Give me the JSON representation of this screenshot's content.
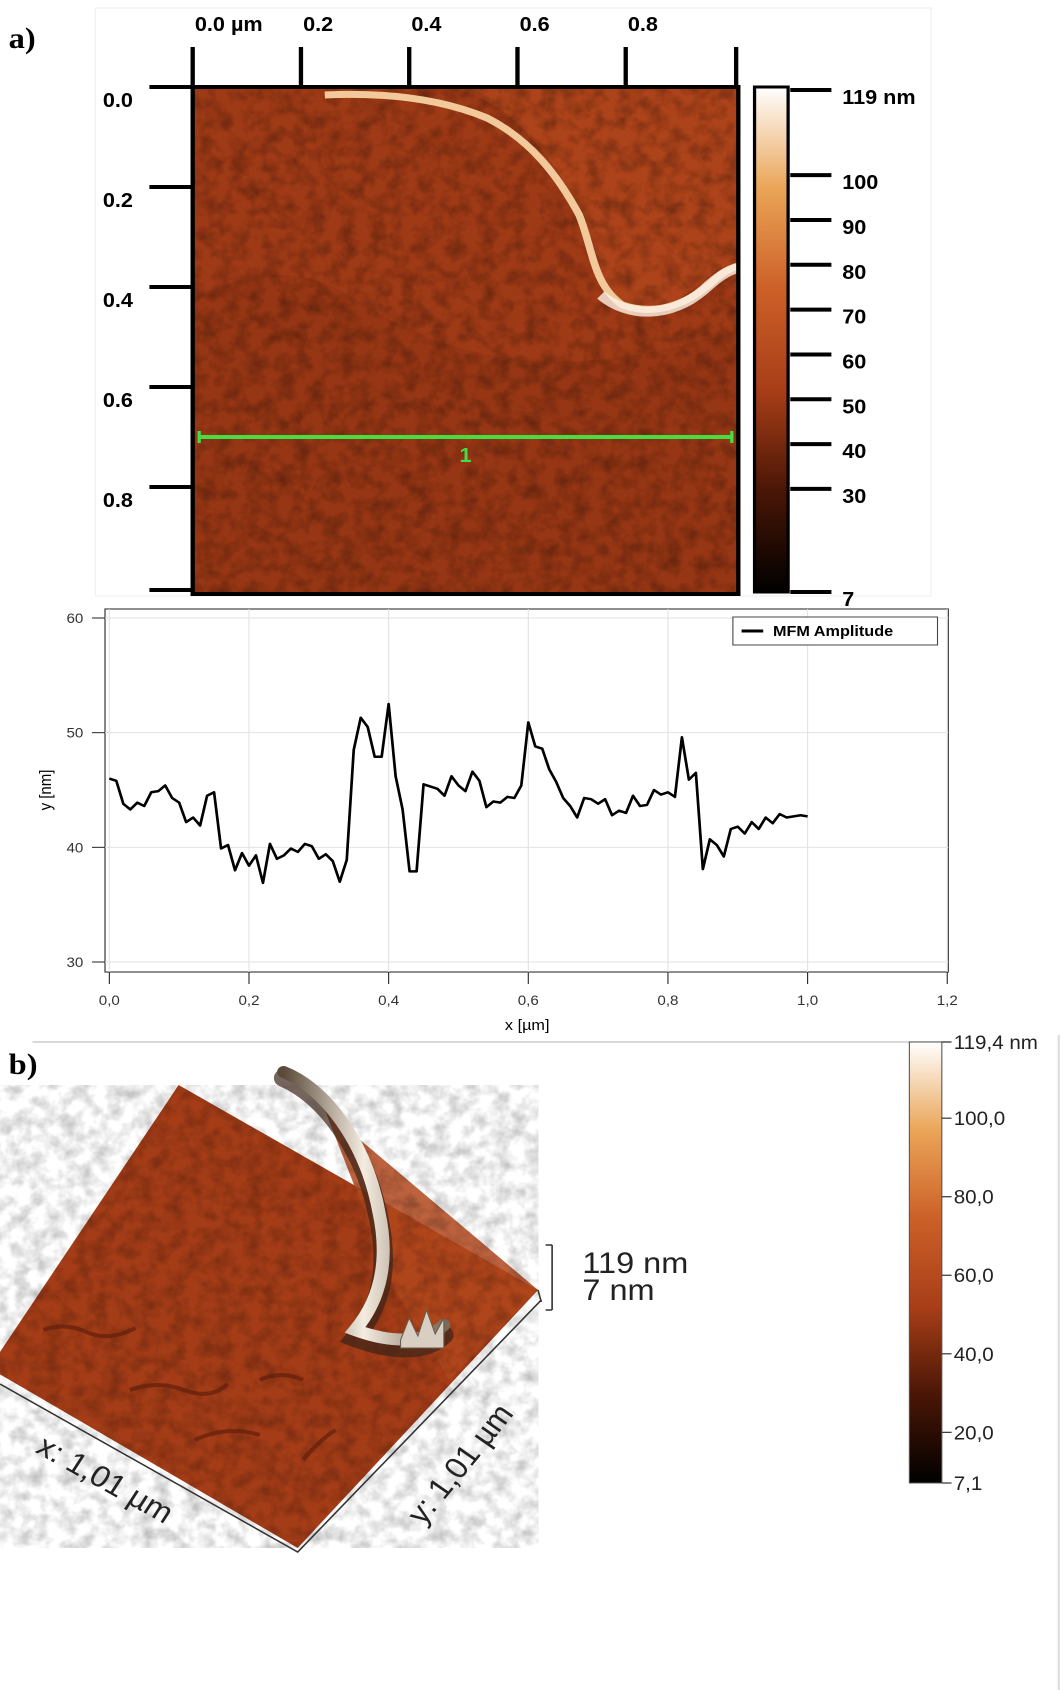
{
  "panel_labels": [
    "a)",
    "b)"
  ],
  "chart_data": [
    {
      "type": "image",
      "xlim": [
        0,
        1
      ],
      "ylim": [
        0,
        1
      ],
      "xticks": [
        {
          "value": 0,
          "label": "0.0 µm"
        },
        0.2,
        0.4,
        0.6,
        0.8
      ],
      "yticks": [
        {
          "value": 0,
          "label": "0.0"
        },
        0.2,
        0.4,
        0.6,
        0.8
      ],
      "profile": {
        "label": "1",
        "y": 0.7,
        "color": "#44dd44"
      },
      "colorbar": {
        "clim": [
          7,
          119
        ],
        "ticks": [
          {
            "value": 119,
            "label": "119 nm"
          },
          100,
          90,
          80,
          70,
          60,
          50,
          40,
          30,
          7
        ]
      },
      "colormap": [
        "#000000",
        "#4a1606",
        "#a83e18",
        "#cc6028",
        "#eaa558",
        "#ffffff"
      ]
    },
    {
      "type": "line",
      "xlabel": "x [µm]",
      "ylabel": "y [nm]",
      "x": [
        0,
        0.01,
        0.02,
        0.03,
        0.04,
        0.05,
        0.06,
        0.07,
        0.08,
        0.09,
        0.1,
        0.11,
        0.12,
        0.13,
        0.14,
        0.15,
        0.16,
        0.17,
        0.18,
        0.19,
        0.2,
        0.21,
        0.22,
        0.23,
        0.24,
        0.25,
        0.26,
        0.27,
        0.28,
        0.29,
        0.3,
        0.31,
        0.32,
        0.33,
        0.34,
        0.35,
        0.36,
        0.37,
        0.38,
        0.39,
        0.4,
        0.41,
        0.42,
        0.43,
        0.44,
        0.45,
        0.46,
        0.47,
        0.48,
        0.49,
        0.5,
        0.51,
        0.52,
        0.53,
        0.54,
        0.55,
        0.56,
        0.57,
        0.58,
        0.59,
        0.6,
        0.61,
        0.62,
        0.63,
        0.64,
        0.65,
        0.66,
        0.67,
        0.68,
        0.69,
        0.7,
        0.71,
        0.72,
        0.73,
        0.74,
        0.75,
        0.76,
        0.77,
        0.78,
        0.79,
        0.8,
        0.81,
        0.82,
        0.83,
        0.84,
        0.85,
        0.86,
        0.87,
        0.88,
        0.89,
        0.9,
        0.91,
        0.92,
        0.93,
        0.94,
        0.95,
        0.96,
        0.97,
        0.98,
        0.99,
        1
      ],
      "series": [
        {
          "name": "MFM Amplitude",
          "color": "#000000",
          "values": [
            46.0,
            45.8,
            43.8,
            43.3,
            43.9,
            43.6,
            44.8,
            44.9,
            45.4,
            44.3,
            43.9,
            42.2,
            42.6,
            41.9,
            44.5,
            44.8,
            39.9,
            40.2,
            38.0,
            39.5,
            38.4,
            39.3,
            36.9,
            40.3,
            39.0,
            39.3,
            39.9,
            39.6,
            40.3,
            40.1,
            39.0,
            39.4,
            38.8,
            37.0,
            38.9,
            48.5,
            51.3,
            50.5,
            47.9,
            47.9,
            52.5,
            46.2,
            43.3,
            37.9,
            37.9,
            45.5,
            45.3,
            45.1,
            44.5,
            46.2,
            45.4,
            44.9,
            46.6,
            45.8,
            43.5,
            44.0,
            43.9,
            44.4,
            44.3,
            45.4,
            50.9,
            48.8,
            48.6,
            46.8,
            45.7,
            44.3,
            43.6,
            42.6,
            44.3,
            44.2,
            43.8,
            44.2,
            42.8,
            43.2,
            43.0,
            44.5,
            43.6,
            43.7,
            45.0,
            44.6,
            44.8,
            44.4,
            49.6,
            45.9,
            46.5,
            38.1,
            40.7,
            40.2,
            39.2,
            41.6,
            41.8,
            41.2,
            42.2,
            41.6,
            42.6,
            42.1,
            42.9,
            42.6,
            42.7,
            42.8,
            42.7
          ]
        }
      ],
      "xlim": [
        0,
        1.2
      ],
      "ylim": [
        30,
        60
      ],
      "xticks": [
        {
          "value": 0,
          "label": "0,0"
        },
        {
          "value": 0.2,
          "label": "0,2"
        },
        {
          "value": 0.4,
          "label": "0,4"
        },
        {
          "value": 0.6,
          "label": "0,6"
        },
        {
          "value": 0.8,
          "label": "0,8"
        },
        {
          "value": 1,
          "label": "1,0"
        },
        {
          "value": 1.2,
          "label": "1,2"
        }
      ],
      "yticks": [
        30,
        40,
        50,
        60
      ],
      "grid": true,
      "legend": "upper right"
    },
    {
      "type": "surface",
      "xlabel": "x: 1,01 µm",
      "ylabel": "y: 1,01 µm",
      "zlim": [
        7,
        119
      ],
      "zticks": [
        {
          "value": 119,
          "label": "119 nm"
        },
        {
          "value": 7,
          "label": "7 nm"
        }
      ],
      "colorbar": {
        "clim": [
          7.1,
          119.4
        ],
        "ticks": [
          {
            "value": 119.4,
            "label": "119,4 nm"
          },
          {
            "value": 100,
            "label": "100,0"
          },
          {
            "value": 80,
            "label": "80,0"
          },
          {
            "value": 60,
            "label": "60,0"
          },
          {
            "value": 40,
            "label": "40,0"
          },
          {
            "value": 20,
            "label": "20,0"
          },
          {
            "value": 7.1,
            "label": "7,1"
          }
        ]
      },
      "colormap": [
        "#000000",
        "#4a1606",
        "#a83e18",
        "#cc6028",
        "#eaa558",
        "#ffffff"
      ]
    }
  ]
}
